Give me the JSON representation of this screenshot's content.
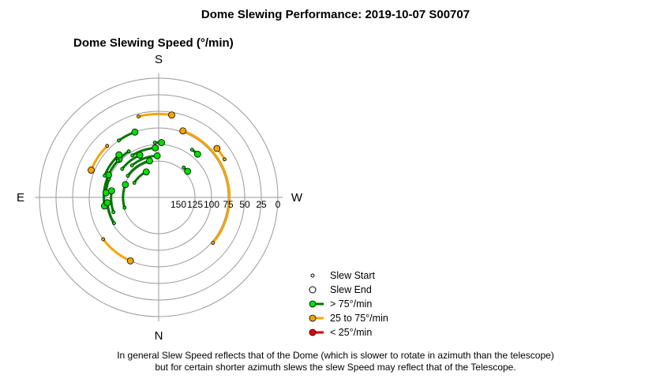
{
  "page": {
    "title": "Dome Slewing Performance: 2019-10-07 S00707",
    "footnote_line1": "In general Slew Speed reflects that of the Dome (which is slower to rotate in azimuth than the telescope)",
    "footnote_line2": "but for certain shorter azimuth slews the slew Speed may reflect that of the Telescope."
  },
  "chart_data": {
    "type": "polar-scatter",
    "title": "Dome Slewing Speed (°/min)",
    "compass": {
      "top": "S",
      "bottom": "N",
      "left": "E",
      "right": "W"
    },
    "radial_tick_labels": [
      "150",
      "125",
      "100",
      "75",
      "50",
      "25",
      "0"
    ],
    "radial_range": [
      150,
      0
    ],
    "grid": true,
    "legend_position": "bottom-right",
    "legend": [
      {
        "label": "Slew Start",
        "marker": "small-hollow-circle"
      },
      {
        "label": "Slew End",
        "marker": "hollow-circle"
      },
      {
        "label": "> 75°/min",
        "color": "#00dd00",
        "line": "#007700"
      },
      {
        "label": "25 to 75°/min",
        "color": "#f5a500",
        "line": "#f5a500"
      },
      {
        "label": "< 25°/min",
        "color": "#ee0000",
        "line": "#cc0000"
      }
    ],
    "colors": {
      "fast": "#00dd00",
      "fast_line": "#007700",
      "medium": "#f5a500",
      "slow": "#ee0000",
      "slow_line": "#cc0000"
    },
    "slews": [
      {
        "speed": 73,
        "start_az": 310,
        "end_az": 200,
        "cat": "medium"
      },
      {
        "speed": 70,
        "start_az": 135,
        "end_az": 112,
        "cat": "medium"
      },
      {
        "speed": 65,
        "start_az": 240,
        "end_az": 230,
        "cat": "medium"
      },
      {
        "speed": 75,
        "start_az": 53,
        "end_az": 24,
        "cat": "medium"
      },
      {
        "speed": 54,
        "start_az": 166,
        "end_az": 189,
        "cat": "medium"
      },
      {
        "speed": 97,
        "start_az": 113,
        "end_az": 81,
        "cat": "fast"
      },
      {
        "speed": 97,
        "start_az": 176,
        "end_az": 183,
        "cat": "fast"
      },
      {
        "speed": 92,
        "start_az": 215,
        "end_az": 222,
        "cat": "fast"
      },
      {
        "speed": 97,
        "start_az": 147,
        "end_az": 134,
        "cat": "fast"
      },
      {
        "speed": 97,
        "start_az": 132,
        "end_az": 114,
        "cat": "fast"
      },
      {
        "speed": 102,
        "start_az": 60,
        "end_az": 84,
        "cat": "fast"
      },
      {
        "speed": 75,
        "start_az": 145,
        "end_az": 160,
        "cat": "fast"
      },
      {
        "speed": 92,
        "start_az": 112,
        "end_az": 137,
        "cat": "fast"
      },
      {
        "speed": 100,
        "start_az": 110,
        "end_az": 95,
        "cat": "fast"
      },
      {
        "speed": 105,
        "start_az": 148,
        "end_az": 176,
        "cat": "fast"
      },
      {
        "speed": 110,
        "start_az": 128,
        "end_az": 156,
        "cat": "fast"
      },
      {
        "speed": 108,
        "start_az": 72,
        "end_az": 98,
        "cat": "fast"
      },
      {
        "speed": 123,
        "start_az": 125,
        "end_az": 166,
        "cat": "fast"
      },
      {
        "speed": 117,
        "start_az": 140,
        "end_az": 178,
        "cat": "fast"
      },
      {
        "speed": 121,
        "start_az": 220,
        "end_az": 228,
        "cat": "fast"
      },
      {
        "speed": 126,
        "start_az": 73,
        "end_az": 111,
        "cat": "fast"
      },
      {
        "speed": 137,
        "start_az": 121,
        "end_az": 154,
        "cat": "fast"
      }
    ]
  }
}
